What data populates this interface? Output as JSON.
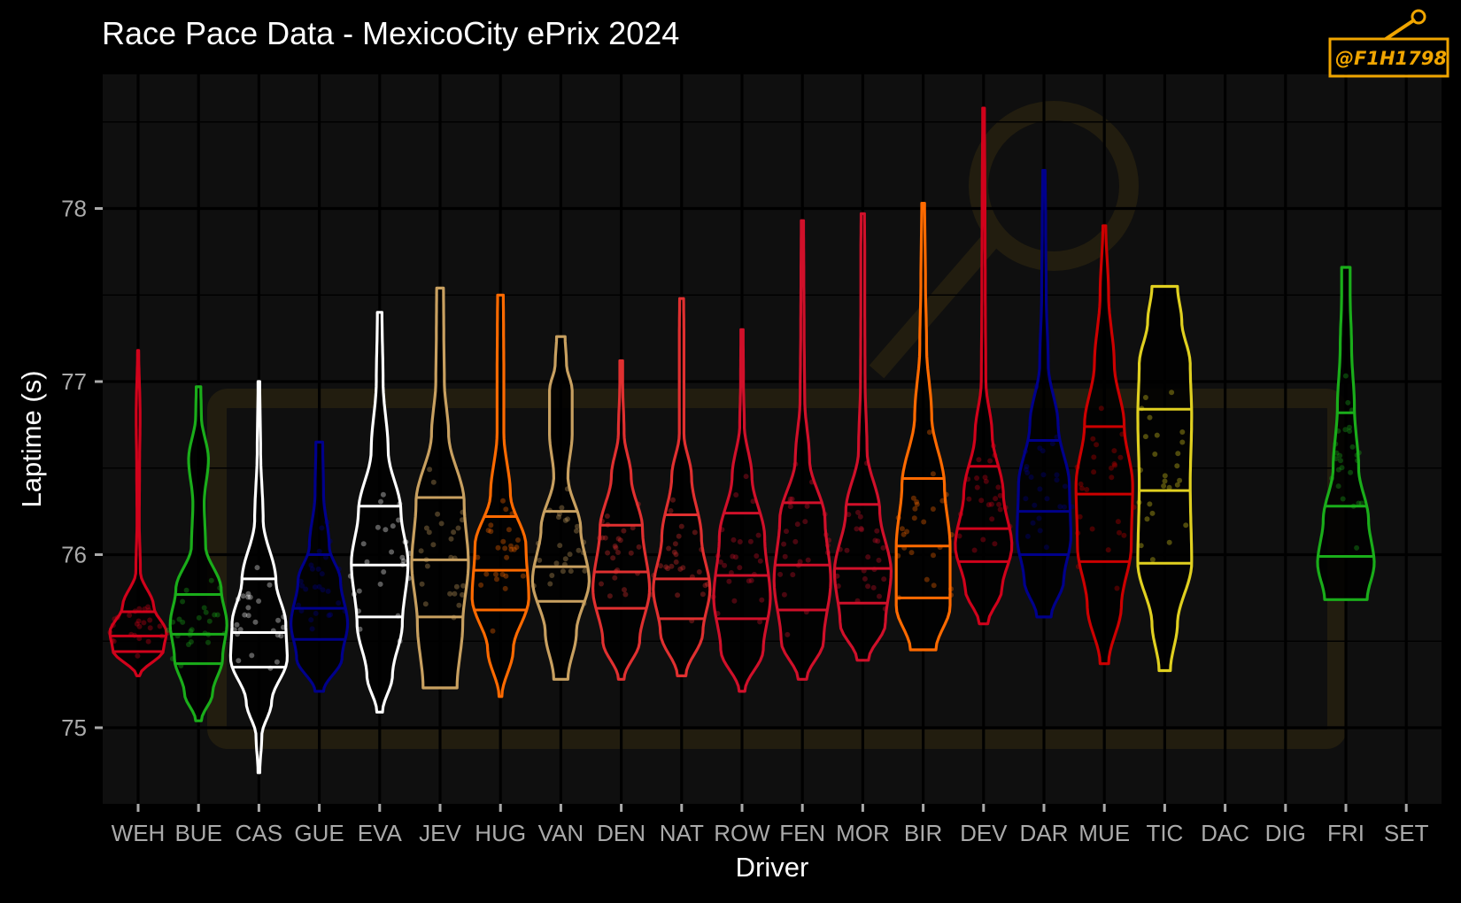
{
  "chart_data": {
    "type": "violin",
    "title": "Race Pace Data - MexicoCity ePrix 2024",
    "xlabel": "Driver",
    "ylabel": "Laptime (s)",
    "ylim": [
      74.55,
      78.8
    ],
    "yticks": [
      75,
      76,
      77,
      78
    ],
    "grid": true,
    "watermark": "@F1H1798",
    "categories": [
      "WEH",
      "BUE",
      "CAS",
      "GUE",
      "EVA",
      "JEV",
      "HUG",
      "VAN",
      "DEN",
      "NAT",
      "ROW",
      "FEN",
      "MOR",
      "BIR",
      "DEV",
      "DAR",
      "MUE",
      "TIC",
      "DAC",
      "DIG",
      "FRI",
      "SET"
    ],
    "series": [
      {
        "driver": "WEH",
        "color": "#d0021b",
        "min": 75.3,
        "max": 77.18,
        "q1": 75.44,
        "median": 75.53,
        "q3": 75.67,
        "profile": [
          [
            75.3,
            0.05
          ],
          [
            75.45,
            0.9
          ],
          [
            75.55,
            1.0
          ],
          [
            75.7,
            0.55
          ],
          [
            75.9,
            0.08
          ],
          [
            76.2,
            0.04
          ],
          [
            76.5,
            0.05
          ],
          [
            76.8,
            0.07
          ],
          [
            77.18,
            0.02
          ]
        ]
      },
      {
        "driver": "BUE",
        "color": "#1aad1a",
        "min": 75.04,
        "max": 76.97,
        "q1": 75.37,
        "median": 75.54,
        "q3": 75.77,
        "profile": [
          [
            75.04,
            0.1
          ],
          [
            75.2,
            0.5
          ],
          [
            75.4,
            0.85
          ],
          [
            75.6,
            1.0
          ],
          [
            75.8,
            0.8
          ],
          [
            76.05,
            0.25
          ],
          [
            76.3,
            0.2
          ],
          [
            76.55,
            0.35
          ],
          [
            76.8,
            0.1
          ],
          [
            76.97,
            0.08
          ]
        ]
      },
      {
        "driver": "CAS",
        "color": "#ffffff",
        "min": 74.74,
        "max": 77.0,
        "q1": 75.35,
        "median": 75.55,
        "q3": 75.86,
        "profile": [
          [
            74.74,
            0.03
          ],
          [
            74.95,
            0.1
          ],
          [
            75.15,
            0.45
          ],
          [
            75.4,
            1.0
          ],
          [
            75.6,
            0.95
          ],
          [
            75.85,
            0.6
          ],
          [
            76.2,
            0.15
          ],
          [
            76.6,
            0.06
          ],
          [
            77.0,
            0.03
          ]
        ]
      },
      {
        "driver": "GUE",
        "color": "#00008b",
        "min": 75.21,
        "max": 76.65,
        "q1": 75.51,
        "median": 75.69,
        "q3": 76.0,
        "profile": [
          [
            75.21,
            0.15
          ],
          [
            75.4,
            0.8
          ],
          [
            75.6,
            1.0
          ],
          [
            75.85,
            0.75
          ],
          [
            76.05,
            0.35
          ],
          [
            76.35,
            0.15
          ],
          [
            76.65,
            0.12
          ]
        ]
      },
      {
        "driver": "EVA",
        "color": "#ffffff",
        "min": 75.09,
        "max": 77.4,
        "q1": 75.64,
        "median": 75.94,
        "q3": 76.28,
        "profile": [
          [
            75.09,
            0.1
          ],
          [
            75.3,
            0.45
          ],
          [
            75.6,
            0.8
          ],
          [
            75.95,
            1.0
          ],
          [
            76.25,
            0.75
          ],
          [
            76.6,
            0.3
          ],
          [
            77.0,
            0.12
          ],
          [
            77.4,
            0.08
          ]
        ]
      },
      {
        "driver": "JEV",
        "color": "#c8a060",
        "min": 75.23,
        "max": 77.54,
        "q1": 75.64,
        "median": 75.97,
        "q3": 76.33,
        "profile": [
          [
            75.23,
            0.6
          ],
          [
            75.6,
            0.8
          ],
          [
            75.95,
            1.0
          ],
          [
            76.3,
            0.85
          ],
          [
            76.7,
            0.3
          ],
          [
            77.0,
            0.15
          ],
          [
            77.3,
            0.13
          ],
          [
            77.54,
            0.12
          ]
        ]
      },
      {
        "driver": "HUG",
        "color": "#ff6a00",
        "min": 75.18,
        "max": 77.5,
        "q1": 75.68,
        "median": 75.91,
        "q3": 76.22,
        "profile": [
          [
            75.18,
            0.05
          ],
          [
            75.45,
            0.45
          ],
          [
            75.75,
            1.0
          ],
          [
            76.05,
            0.9
          ],
          [
            76.35,
            0.35
          ],
          [
            76.7,
            0.12
          ],
          [
            77.0,
            0.12
          ],
          [
            77.3,
            0.11
          ],
          [
            77.5,
            0.1
          ]
        ]
      },
      {
        "driver": "VAN",
        "color": "#c8a060",
        "min": 75.28,
        "max": 77.26,
        "q1": 75.73,
        "median": 75.93,
        "q3": 76.25,
        "profile": [
          [
            75.28,
            0.25
          ],
          [
            75.55,
            0.55
          ],
          [
            75.85,
            1.0
          ],
          [
            76.15,
            0.7
          ],
          [
            76.45,
            0.25
          ],
          [
            76.7,
            0.4
          ],
          [
            76.95,
            0.4
          ],
          [
            77.1,
            0.2
          ],
          [
            77.26,
            0.15
          ]
        ]
      },
      {
        "driver": "DEN",
        "color": "#e03030",
        "min": 75.28,
        "max": 77.12,
        "q1": 75.69,
        "median": 75.9,
        "q3": 76.17,
        "profile": [
          [
            75.28,
            0.1
          ],
          [
            75.5,
            0.65
          ],
          [
            75.8,
            1.0
          ],
          [
            76.15,
            0.75
          ],
          [
            76.45,
            0.35
          ],
          [
            76.7,
            0.1
          ],
          [
            77.0,
            0.05
          ],
          [
            77.12,
            0.05
          ]
        ]
      },
      {
        "driver": "NAT",
        "color": "#e03030",
        "min": 75.3,
        "max": 77.48,
        "q1": 75.63,
        "median": 75.86,
        "q3": 76.23,
        "profile": [
          [
            75.3,
            0.15
          ],
          [
            75.55,
            0.75
          ],
          [
            75.8,
            1.0
          ],
          [
            76.1,
            0.7
          ],
          [
            76.45,
            0.35
          ],
          [
            76.7,
            0.08
          ],
          [
            77.0,
            0.08
          ],
          [
            77.3,
            0.08
          ],
          [
            77.48,
            0.07
          ]
        ]
      },
      {
        "driver": "ROW",
        "color": "#d0102a",
        "min": 75.21,
        "max": 77.3,
        "q1": 75.63,
        "median": 75.88,
        "q3": 76.24,
        "profile": [
          [
            75.21,
            0.1
          ],
          [
            75.45,
            0.75
          ],
          [
            75.75,
            1.0
          ],
          [
            76.1,
            0.8
          ],
          [
            76.45,
            0.35
          ],
          [
            76.75,
            0.08
          ],
          [
            77.0,
            0.05
          ],
          [
            77.3,
            0.04
          ]
        ]
      },
      {
        "driver": "FEN",
        "color": "#d0102a",
        "min": 75.28,
        "max": 77.93,
        "q1": 75.68,
        "median": 75.94,
        "q3": 76.3,
        "profile": [
          [
            75.28,
            0.15
          ],
          [
            75.5,
            0.75
          ],
          [
            75.85,
            1.0
          ],
          [
            76.2,
            0.8
          ],
          [
            76.55,
            0.25
          ],
          [
            76.9,
            0.08
          ],
          [
            77.3,
            0.06
          ],
          [
            77.6,
            0.05
          ],
          [
            77.93,
            0.04
          ]
        ]
      },
      {
        "driver": "MOR",
        "color": "#d0102a",
        "min": 75.39,
        "max": 77.97,
        "q1": 75.72,
        "median": 75.92,
        "q3": 76.29,
        "profile": [
          [
            75.39,
            0.2
          ],
          [
            75.6,
            0.8
          ],
          [
            75.9,
            1.0
          ],
          [
            76.25,
            0.6
          ],
          [
            76.6,
            0.15
          ],
          [
            77.0,
            0.08
          ],
          [
            77.4,
            0.07
          ],
          [
            77.7,
            0.07
          ],
          [
            77.97,
            0.06
          ]
        ]
      },
      {
        "driver": "BIR",
        "color": "#ff6a00",
        "min": 75.45,
        "max": 78.03,
        "q1": 75.75,
        "median": 76.05,
        "q3": 76.44,
        "profile": [
          [
            75.45,
            0.45
          ],
          [
            75.7,
            0.95
          ],
          [
            76.05,
            0.95
          ],
          [
            76.4,
            0.75
          ],
          [
            76.8,
            0.3
          ],
          [
            77.2,
            0.12
          ],
          [
            77.6,
            0.08
          ],
          [
            78.03,
            0.05
          ]
        ]
      },
      {
        "driver": "DEV",
        "color": "#d0021b",
        "min": 75.6,
        "max": 78.58,
        "q1": 75.96,
        "median": 76.15,
        "q3": 76.51,
        "profile": [
          [
            75.6,
            0.15
          ],
          [
            75.8,
            0.65
          ],
          [
            76.05,
            1.0
          ],
          [
            76.35,
            0.7
          ],
          [
            76.7,
            0.3
          ],
          [
            77.0,
            0.08
          ],
          [
            77.5,
            0.06
          ],
          [
            78.0,
            0.05
          ],
          [
            78.58,
            0.03
          ]
        ]
      },
      {
        "driver": "DAR",
        "color": "#00008b",
        "min": 75.64,
        "max": 78.22,
        "q1": 76.0,
        "median": 76.25,
        "q3": 76.66,
        "profile": [
          [
            75.64,
            0.25
          ],
          [
            75.85,
            0.7
          ],
          [
            76.1,
            0.95
          ],
          [
            76.4,
            0.9
          ],
          [
            76.75,
            0.5
          ],
          [
            77.1,
            0.15
          ],
          [
            77.5,
            0.08
          ],
          [
            77.9,
            0.06
          ],
          [
            78.22,
            0.04
          ]
        ]
      },
      {
        "driver": "MUE",
        "color": "#cc0000",
        "min": 75.37,
        "max": 77.9,
        "q1": 75.96,
        "median": 76.35,
        "q3": 76.74,
        "profile": [
          [
            75.37,
            0.15
          ],
          [
            75.7,
            0.6
          ],
          [
            76.05,
            0.95
          ],
          [
            76.4,
            1.0
          ],
          [
            76.75,
            0.7
          ],
          [
            77.1,
            0.35
          ],
          [
            77.5,
            0.15
          ],
          [
            77.9,
            0.05
          ]
        ]
      },
      {
        "driver": "TIC",
        "color": "#e0d020",
        "min": 75.33,
        "max": 77.55,
        "q1": 75.95,
        "median": 76.37,
        "q3": 76.84,
        "profile": [
          [
            75.33,
            0.2
          ],
          [
            75.6,
            0.45
          ],
          [
            75.95,
            0.95
          ],
          [
            76.4,
            0.9
          ],
          [
            76.8,
            0.95
          ],
          [
            77.1,
            0.9
          ],
          [
            77.35,
            0.6
          ],
          [
            77.55,
            0.45
          ]
        ]
      },
      {
        "driver": "DAC",
        "color": "#d0021b",
        "min": null,
        "max": null,
        "q1": null,
        "median": null,
        "q3": null,
        "profile": []
      },
      {
        "driver": "DIG",
        "color": "#1aad1a",
        "min": null,
        "max": null,
        "q1": null,
        "median": null,
        "q3": null,
        "profile": []
      },
      {
        "driver": "FRI",
        "color": "#1aad1a",
        "min": 75.74,
        "max": 77.66,
        "q1": 75.99,
        "median": 76.28,
        "q3": 76.82,
        "profile": [
          [
            75.74,
            0.75
          ],
          [
            75.95,
            1.0
          ],
          [
            76.2,
            0.8
          ],
          [
            76.5,
            0.45
          ],
          [
            76.85,
            0.3
          ],
          [
            77.2,
            0.2
          ],
          [
            77.5,
            0.15
          ],
          [
            77.66,
            0.15
          ]
        ]
      },
      {
        "driver": "SET",
        "color": "#e0d020",
        "min": null,
        "max": null,
        "q1": null,
        "median": null,
        "q3": null,
        "profile": []
      }
    ]
  }
}
